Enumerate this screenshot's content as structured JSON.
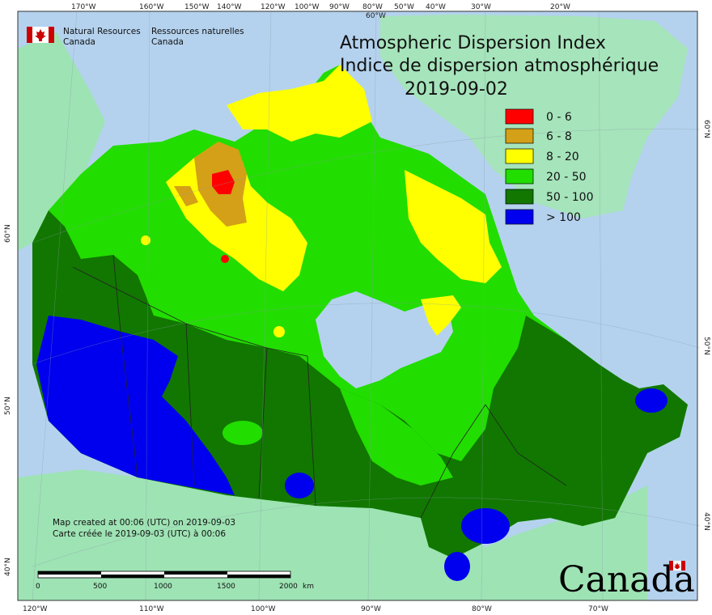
{
  "top_longitudes": [
    "170°W",
    "160°W",
    "150°W",
    "140°W",
    "120°W",
    "100°W",
    "90°W",
    "80°W",
    "60°W",
    "50°W",
    "40°W",
    "30°W",
    "20°W"
  ],
  "bottom_longitudes": [
    "120°W",
    "110°W",
    "100°W",
    "90°W",
    "80°W",
    "70°W"
  ],
  "left_latitudes": [
    "60°N",
    "50°N",
    "40°N"
  ],
  "right_latitudes": [
    "60°N",
    "50°N",
    "40°N"
  ],
  "agency": {
    "name_en_1": "Natural Resources",
    "name_en_2": "Canada",
    "name_fr_1": "Ressources naturelles",
    "name_fr_2": "Canada"
  },
  "title": {
    "line1": "Atmospheric Dispersion Index",
    "line2": "Indice de dispersion atmosphérique",
    "date": "2019-09-02"
  },
  "legend": [
    {
      "label": "0 - 6",
      "color": "#ff0000"
    },
    {
      "label": "6 - 8",
      "color": "#d4a017"
    },
    {
      "label": "8 - 20",
      "color": "#ffff00"
    },
    {
      "label": "20 - 50",
      "color": "#22dd00"
    },
    {
      "label": "50 - 100",
      "color": "#117700"
    },
    {
      "label": "> 100",
      "color": "#0000ee"
    }
  ],
  "credits": {
    "created_en": "Map created at 00:06 (UTC) on 2019-09-03",
    "created_fr": "Carte créée le 2019-09-03 (UTC) à 00:06"
  },
  "scale_bar": {
    "labels": [
      "0",
      "500",
      "1000",
      "1500",
      "2000"
    ],
    "unit": "km"
  },
  "wordmark": "Canada",
  "colors": {
    "ocean": "#b4d2ee",
    "land_other": "#9ee3b4",
    "greenland": "#a6e4bb"
  }
}
